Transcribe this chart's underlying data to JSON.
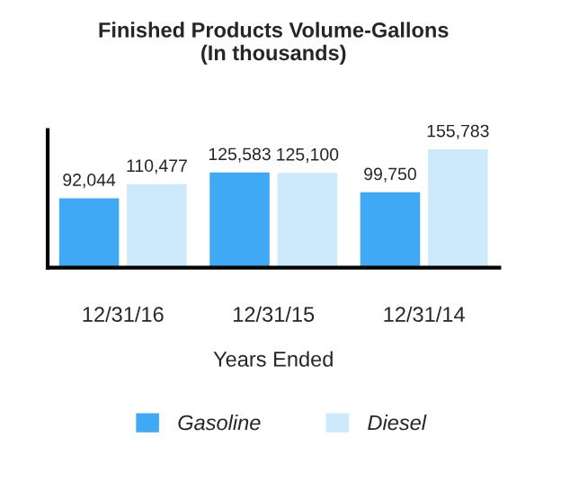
{
  "chart_data": {
    "type": "bar",
    "title": "Finished Products Volume-Gallons\n(In thousands)",
    "xlabel": "Years Ended",
    "categories": [
      "12/31/16",
      "12/31/15",
      "12/31/14"
    ],
    "series": [
      {
        "name": "Gasoline",
        "color": "#3fa9f5",
        "values": [
          92044,
          125583,
          99750
        ],
        "value_labels": [
          "92,044",
          "125,583",
          "99,750"
        ]
      },
      {
        "name": "Diesel",
        "color": "#cdeafc",
        "values": [
          110477,
          125100,
          155783
        ],
        "value_labels": [
          "110,477",
          "125,100",
          "155,783"
        ]
      }
    ],
    "legend": "bottom",
    "tick_labels": "x"
  }
}
